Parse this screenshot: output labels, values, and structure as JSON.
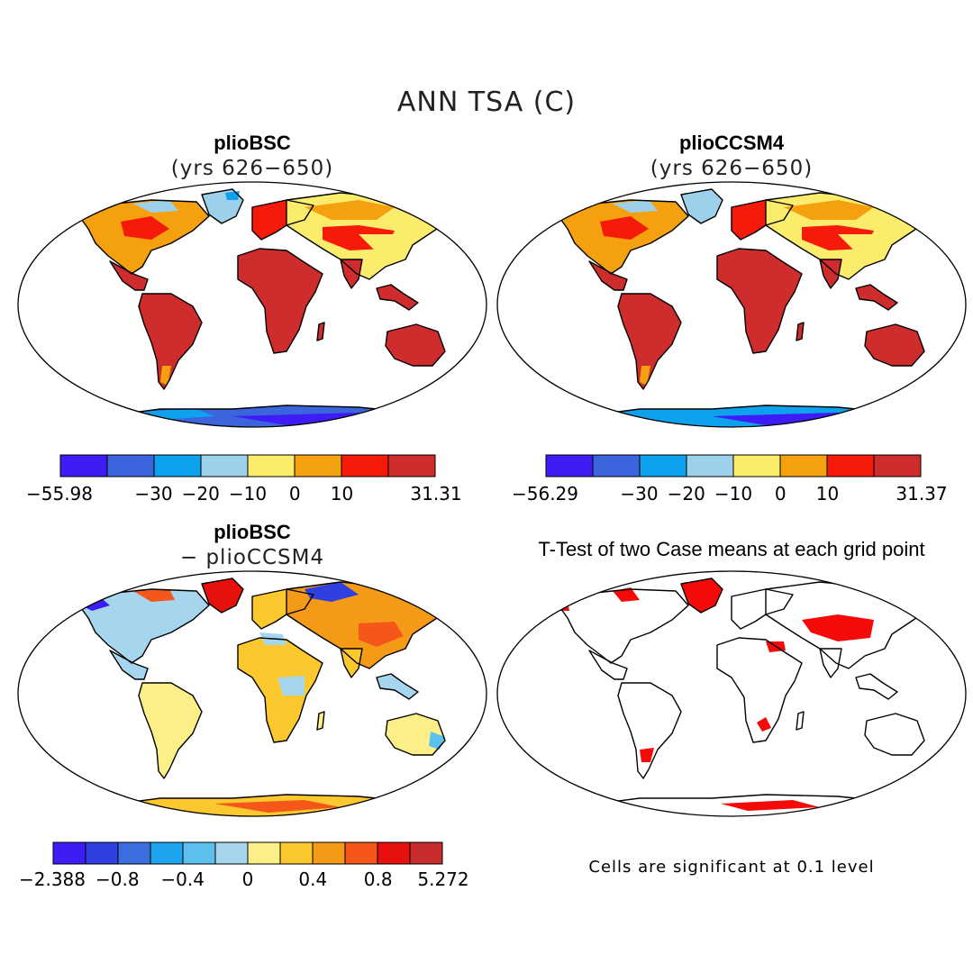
{
  "figure": {
    "title": "ANN TSA (C)"
  },
  "panels": [
    {
      "id": "a",
      "title": "plioBSC",
      "subtitle": "(yrs 626−650)"
    },
    {
      "id": "b",
      "title": "plioCCSM4",
      "subtitle": "(yrs 626−650)"
    },
    {
      "id": "c",
      "title": "plioBSC",
      "subtitle": "− plioCCSM4"
    },
    {
      "id": "d",
      "title": "T-Test of two Case means at each grid point",
      "subtitle": ""
    }
  ],
  "colorbars": {
    "a": {
      "colors": [
        "#3d1cf5",
        "#3b64dd",
        "#0ea2ee",
        "#9dd1eb",
        "#fbec6c",
        "#f5a00f",
        "#f51a0a",
        "#cf2d2d"
      ],
      "ticks": [
        {
          "label": "−55.98",
          "at": 0
        },
        {
          "label": "−30",
          "at": 2
        },
        {
          "label": "−20",
          "at": 3
        },
        {
          "label": "−10",
          "at": 4
        },
        {
          "label": "0",
          "at": 5
        },
        {
          "label": "10",
          "at": 6
        },
        {
          "label": "31.31",
          "at": 8
        }
      ]
    },
    "b": {
      "colors": [
        "#3d1cf5",
        "#3b64dd",
        "#0ea2ee",
        "#9dd1eb",
        "#fbec6c",
        "#f5a00f",
        "#f51a0a",
        "#cf2d2d"
      ],
      "ticks": [
        {
          "label": "−56.29",
          "at": 0
        },
        {
          "label": "−30",
          "at": 2
        },
        {
          "label": "−20",
          "at": 3
        },
        {
          "label": "−10",
          "at": 4
        },
        {
          "label": "0",
          "at": 5
        },
        {
          "label": "10",
          "at": 6
        },
        {
          "label": "31.37",
          "at": 8
        }
      ]
    },
    "c": {
      "colors": [
        "#3d1cf5",
        "#2f3fe0",
        "#3b6fdf",
        "#1ea3ee",
        "#5cc0ef",
        "#a6d6ee",
        "#fcef88",
        "#fbc82e",
        "#f59a17",
        "#f5561a",
        "#e6100c",
        "#c82d2d"
      ],
      "ticks": [
        {
          "label": "−2.388",
          "at": 0
        },
        {
          "label": "−0.8",
          "at": 2
        },
        {
          "label": "−0.4",
          "at": 4
        },
        {
          "label": "0",
          "at": 6
        },
        {
          "label": "0.4",
          "at": 8
        },
        {
          "label": "0.8",
          "at": 10
        },
        {
          "label": "5.272",
          "at": 12
        }
      ]
    }
  },
  "note": "Cells are significant at 0.1 level"
}
